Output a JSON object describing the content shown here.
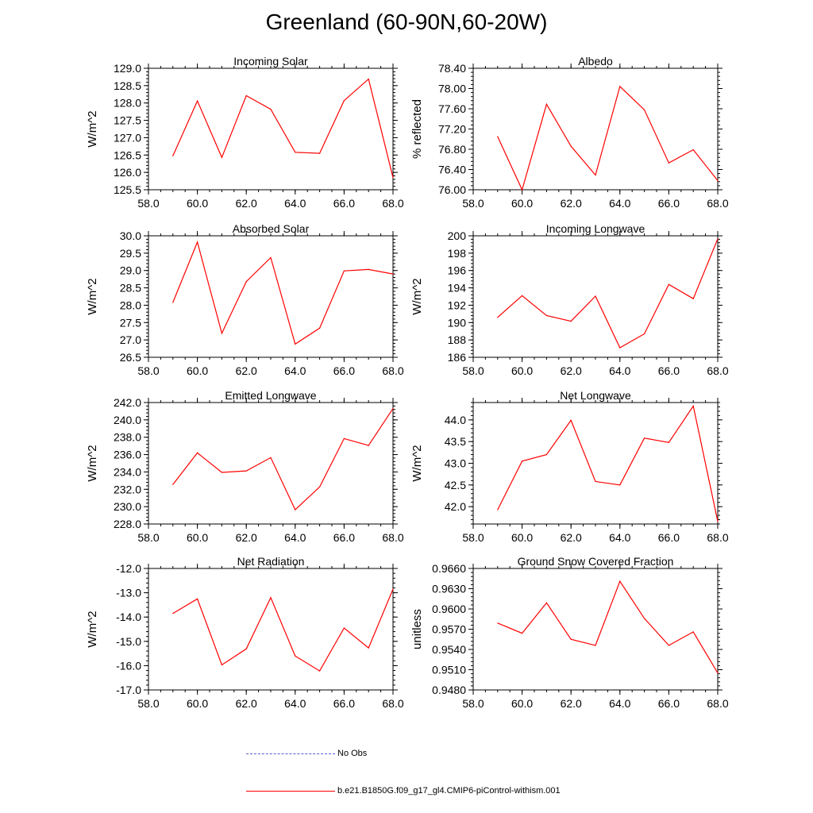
{
  "title": "Greenland (60-90N,60-20W)",
  "colors": {
    "series": "#ff0000",
    "obs": "#5a5ad6",
    "axis": "#000000"
  },
  "legend": [
    {
      "label": "No Obs",
      "style": "dashed",
      "color": "#5a5ad6"
    },
    {
      "label": "b.e21.B1850G.f09_g17_gl4.CMIP6-piControl-withism.001",
      "style": "solid",
      "color": "#ff0000"
    }
  ],
  "chart_data": [
    {
      "type": "line",
      "title": "Incoming Solar",
      "xlabel": "",
      "ylabel": "W/m^2",
      "xlim": [
        58,
        68
      ],
      "ylim": [
        125.5,
        129.0
      ],
      "xticks": [
        58,
        60,
        62,
        64,
        66,
        68
      ],
      "xtick_labels": [
        "58.0",
        "60.0",
        "62.0",
        "64.0",
        "66.0",
        "68.0"
      ],
      "yticks": [
        125.5,
        126.0,
        126.5,
        127.0,
        127.5,
        128.0,
        128.5,
        129.0
      ],
      "ytick_labels": [
        "125.5",
        "126.0",
        "126.5",
        "127.0",
        "127.5",
        "128.0",
        "128.5",
        "129.0"
      ],
      "series": [
        {
          "name": "b.e21.B1850G.f09_g17_gl4.CMIP6-piControl-withism.001",
          "x": [
            59,
            60,
            61,
            62,
            63,
            64,
            65,
            66,
            67,
            68
          ],
          "values": [
            126.48,
            128.06,
            126.43,
            128.21,
            127.82,
            126.58,
            126.55,
            128.07,
            128.69,
            125.85
          ]
        }
      ]
    },
    {
      "type": "line",
      "title": "Albedo",
      "xlabel": "",
      "ylabel": "% reflected",
      "xlim": [
        58,
        68
      ],
      "ylim": [
        76.0,
        78.4
      ],
      "xticks": [
        58,
        60,
        62,
        64,
        66,
        68
      ],
      "xtick_labels": [
        "58.0",
        "60.0",
        "62.0",
        "64.0",
        "66.0",
        "68.0"
      ],
      "yticks": [
        76.0,
        76.4,
        76.8,
        77.2,
        77.6,
        78.0,
        78.4
      ],
      "ytick_labels": [
        "76.00",
        "76.40",
        "76.80",
        "77.20",
        "77.60",
        "78.00",
        "78.40"
      ],
      "series": [
        {
          "name": "b.e21.B1850G.f09_g17_gl4.CMIP6-piControl-withism.001",
          "x": [
            59,
            60,
            61,
            62,
            63,
            64,
            65,
            66,
            67,
            68
          ],
          "values": [
            77.05,
            76.0,
            77.69,
            76.86,
            76.29,
            78.04,
            77.58,
            76.53,
            76.79,
            76.18
          ]
        }
      ]
    },
    {
      "type": "line",
      "title": "Absorbed Solar",
      "xlabel": "",
      "ylabel": "W/m^2",
      "xlim": [
        58,
        68
      ],
      "ylim": [
        26.5,
        30.0
      ],
      "xticks": [
        58,
        60,
        62,
        64,
        66,
        68
      ],
      "xtick_labels": [
        "58.0",
        "60.0",
        "62.0",
        "64.0",
        "66.0",
        "68.0"
      ],
      "yticks": [
        26.5,
        27.0,
        27.5,
        28.0,
        28.5,
        29.0,
        29.5,
        30.0
      ],
      "ytick_labels": [
        "26.5",
        "27.0",
        "27.5",
        "28.0",
        "28.5",
        "29.0",
        "29.5",
        "30.0"
      ],
      "series": [
        {
          "name": "b.e21.B1850G.f09_g17_gl4.CMIP6-piControl-withism.001",
          "x": [
            59,
            60,
            61,
            62,
            63,
            64,
            65,
            66,
            67,
            68
          ],
          "values": [
            28.08,
            29.82,
            27.19,
            28.68,
            29.37,
            26.88,
            27.34,
            28.99,
            29.03,
            28.9
          ]
        }
      ]
    },
    {
      "type": "line",
      "title": "Incoming Longwave",
      "xlabel": "",
      "ylabel": "W/m^2",
      "xlim": [
        58,
        68
      ],
      "ylim": [
        186,
        200
      ],
      "xticks": [
        58,
        60,
        62,
        64,
        66,
        68
      ],
      "xtick_labels": [
        "58.0",
        "60.0",
        "62.0",
        "64.0",
        "66.0",
        "68.0"
      ],
      "yticks": [
        186,
        188,
        190,
        192,
        194,
        196,
        198,
        200
      ],
      "ytick_labels": [
        "186",
        "188",
        "190",
        "192",
        "194",
        "196",
        "198",
        "200"
      ],
      "series": [
        {
          "name": "b.e21.B1850G.f09_g17_gl4.CMIP6-piControl-withism.001",
          "x": [
            59,
            60,
            61,
            62,
            63,
            64,
            65,
            66,
            67,
            68
          ],
          "values": [
            190.6,
            193.1,
            190.8,
            190.15,
            193.05,
            187.1,
            188.7,
            194.4,
            192.75,
            199.65
          ]
        }
      ]
    },
    {
      "type": "line",
      "title": "Emitted Longwave",
      "xlabel": "",
      "ylabel": "W/m^2",
      "xlim": [
        58,
        68
      ],
      "ylim": [
        228,
        242
      ],
      "xticks": [
        58,
        60,
        62,
        64,
        66,
        68
      ],
      "xtick_labels": [
        "58.0",
        "60.0",
        "62.0",
        "64.0",
        "66.0",
        "68.0"
      ],
      "yticks": [
        228,
        230,
        232,
        234,
        236,
        238,
        240,
        242
      ],
      "ytick_labels": [
        "228.0",
        "230.0",
        "232.0",
        "234.0",
        "236.0",
        "238.0",
        "240.0",
        "242.0"
      ],
      "series": [
        {
          "name": "b.e21.B1850G.f09_g17_gl4.CMIP6-piControl-withism.001",
          "x": [
            59,
            60,
            61,
            62,
            63,
            64,
            65,
            66,
            67,
            68
          ],
          "values": [
            232.55,
            236.2,
            233.95,
            234.12,
            235.65,
            229.65,
            232.27,
            237.85,
            237.05,
            241.3
          ]
        }
      ]
    },
    {
      "type": "line",
      "title": "Net Longwave",
      "xlabel": "",
      "ylabel": "W/m^2",
      "xlim": [
        58,
        68
      ],
      "ylim": [
        41.6,
        44.4
      ],
      "xticks": [
        58,
        60,
        62,
        64,
        66,
        68
      ],
      "xtick_labels": [
        "58.0",
        "60.0",
        "62.0",
        "64.0",
        "66.0",
        "68.0"
      ],
      "yticks": [
        42.0,
        42.5,
        43.0,
        43.5,
        44.0
      ],
      "ytick_labels": [
        "42.0",
        "42.5",
        "43.0",
        "43.5",
        "44.0"
      ],
      "series": [
        {
          "name": "b.e21.B1850G.f09_g17_gl4.CMIP6-piControl-withism.001",
          "x": [
            59,
            60,
            61,
            62,
            63,
            64,
            65,
            66,
            67,
            68
          ],
          "values": [
            41.93,
            43.05,
            43.2,
            43.99,
            42.58,
            42.5,
            43.58,
            43.48,
            44.32,
            41.66
          ]
        }
      ]
    },
    {
      "type": "line",
      "title": "Net Radiation",
      "xlabel": "",
      "ylabel": "W/m^2",
      "xlim": [
        58,
        68
      ],
      "ylim": [
        -17.0,
        -12.0
      ],
      "xticks": [
        58,
        60,
        62,
        64,
        66,
        68
      ],
      "xtick_labels": [
        "58.0",
        "60.0",
        "62.0",
        "64.0",
        "66.0",
        "68.0"
      ],
      "yticks": [
        -17.0,
        -16.0,
        -15.0,
        -14.0,
        -13.0,
        -12.0
      ],
      "ytick_labels": [
        "-17.0",
        "-16.0",
        "-15.0",
        "-14.0",
        "-13.0",
        "-12.0"
      ],
      "series": [
        {
          "name": "b.e21.B1850G.f09_g17_gl4.CMIP6-piControl-withism.001",
          "x": [
            59,
            60,
            61,
            62,
            63,
            64,
            65,
            66,
            67,
            68
          ],
          "values": [
            -13.85,
            -13.25,
            -15.97,
            -15.31,
            -13.2,
            -15.6,
            -16.22,
            -14.45,
            -15.27,
            -12.85
          ]
        }
      ]
    },
    {
      "type": "line",
      "title": "Ground Snow Covered Fraction",
      "xlabel": "",
      "ylabel": "unitless",
      "xlim": [
        58,
        68
      ],
      "ylim": [
        0.948,
        0.966
      ],
      "xticks": [
        58,
        60,
        62,
        64,
        66,
        68
      ],
      "xtick_labels": [
        "58.0",
        "60.0",
        "62.0",
        "64.0",
        "66.0",
        "68.0"
      ],
      "yticks": [
        0.948,
        0.951,
        0.954,
        0.957,
        0.96,
        0.963,
        0.966
      ],
      "ytick_labels": [
        "0.9480",
        "0.9510",
        "0.9540",
        "0.9570",
        "0.9600",
        "0.9630",
        "0.9660"
      ],
      "series": [
        {
          "name": "b.e21.B1850G.f09_g17_gl4.CMIP6-piControl-withism.001",
          "x": [
            59,
            60,
            61,
            62,
            63,
            64,
            65,
            66,
            67,
            68
          ],
          "values": [
            0.9579,
            0.9564,
            0.9609,
            0.9555,
            0.9546,
            0.9641,
            0.9586,
            0.9546,
            0.9566,
            0.9505
          ]
        }
      ]
    }
  ]
}
